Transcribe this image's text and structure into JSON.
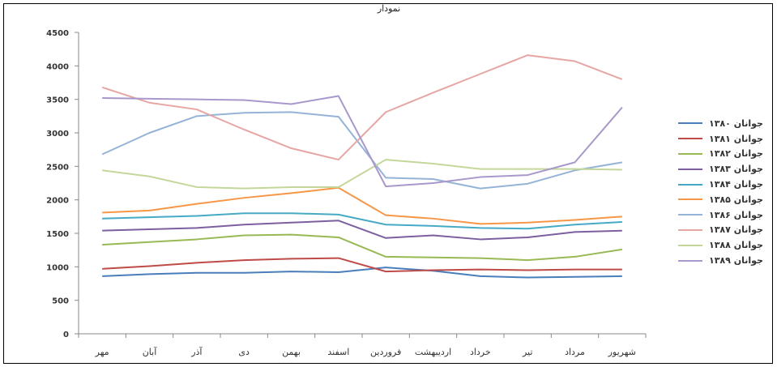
{
  "chart_data": {
    "type": "line",
    "title": "نمودار",
    "xlabel": "",
    "ylabel": "",
    "ylim": [
      0,
      4500
    ],
    "yticks": [
      0,
      500,
      1000,
      1500,
      2000,
      2500,
      3000,
      3500,
      4000,
      4500
    ],
    "ytick_labels": [
      "0",
      "500",
      "1000",
      "1500",
      "2000",
      "2500",
      "3000",
      "3500",
      "4000",
      "4500"
    ],
    "categories": [
      "مهر",
      "آبان",
      "آذر",
      "دی",
      "بهمن",
      "اسفند",
      "فروردین",
      "اردیبهشت",
      "خرداد",
      "تیر",
      "مرداد",
      "شهریور"
    ],
    "grid": false,
    "legend_position": "right",
    "series": [
      {
        "name": "جوانان ۱۳۸۰",
        "color": "#4a7ebb",
        "values": [
          860,
          890,
          910,
          910,
          930,
          920,
          990,
          940,
          860,
          840,
          850,
          860
        ]
      },
      {
        "name": "جوانان ۱۳۸۱",
        "color": "#be4b48",
        "values": [
          970,
          1010,
          1060,
          1100,
          1120,
          1130,
          930,
          950,
          960,
          950,
          960,
          960
        ]
      },
      {
        "name": "جوانان ۱۳۸۲",
        "color": "#98b954",
        "values": [
          1330,
          1370,
          1410,
          1470,
          1480,
          1440,
          1150,
          1140,
          1130,
          1100,
          1150,
          1260
        ]
      },
      {
        "name": "جوانان ۱۳۸۳",
        "color": "#7d5fa0",
        "values": [
          1540,
          1560,
          1580,
          1630,
          1660,
          1690,
          1430,
          1470,
          1410,
          1440,
          1520,
          1540
        ]
      },
      {
        "name": "جوانان ۱۳۸۴",
        "color": "#46aac5",
        "values": [
          1720,
          1740,
          1760,
          1800,
          1800,
          1780,
          1630,
          1610,
          1580,
          1570,
          1630,
          1670
        ]
      },
      {
        "name": "جوانان ۱۳۸۵",
        "color": "#f79646",
        "values": [
          1810,
          1840,
          1940,
          2030,
          2100,
          2180,
          1770,
          1720,
          1640,
          1660,
          1700,
          1750
        ]
      },
      {
        "name": "جوانان ۱۳۸۶",
        "color": "#95b3d7",
        "values": [
          2680,
          3000,
          3250,
          3300,
          3310,
          3240,
          2330,
          2310,
          2170,
          2240,
          2440,
          2560
        ]
      },
      {
        "name": "جوانان ۱۳۸۷",
        "color": "#e6a6a4",
        "values": [
          3680,
          3450,
          3350,
          3050,
          2770,
          2600,
          3310,
          3600,
          3880,
          4160,
          4070,
          3800
        ]
      },
      {
        "name": "جوانان ۱۳۸۸",
        "color": "#c4d79b",
        "values": [
          2440,
          2350,
          2190,
          2170,
          2190,
          2190,
          2600,
          2540,
          2460,
          2460,
          2460,
          2450
        ]
      },
      {
        "name": "جوانان ۱۳۸۹",
        "color": "#a898cc",
        "values": [
          3520,
          3510,
          3500,
          3490,
          3430,
          3550,
          2200,
          2250,
          2340,
          2370,
          2560,
          3380
        ]
      }
    ]
  }
}
